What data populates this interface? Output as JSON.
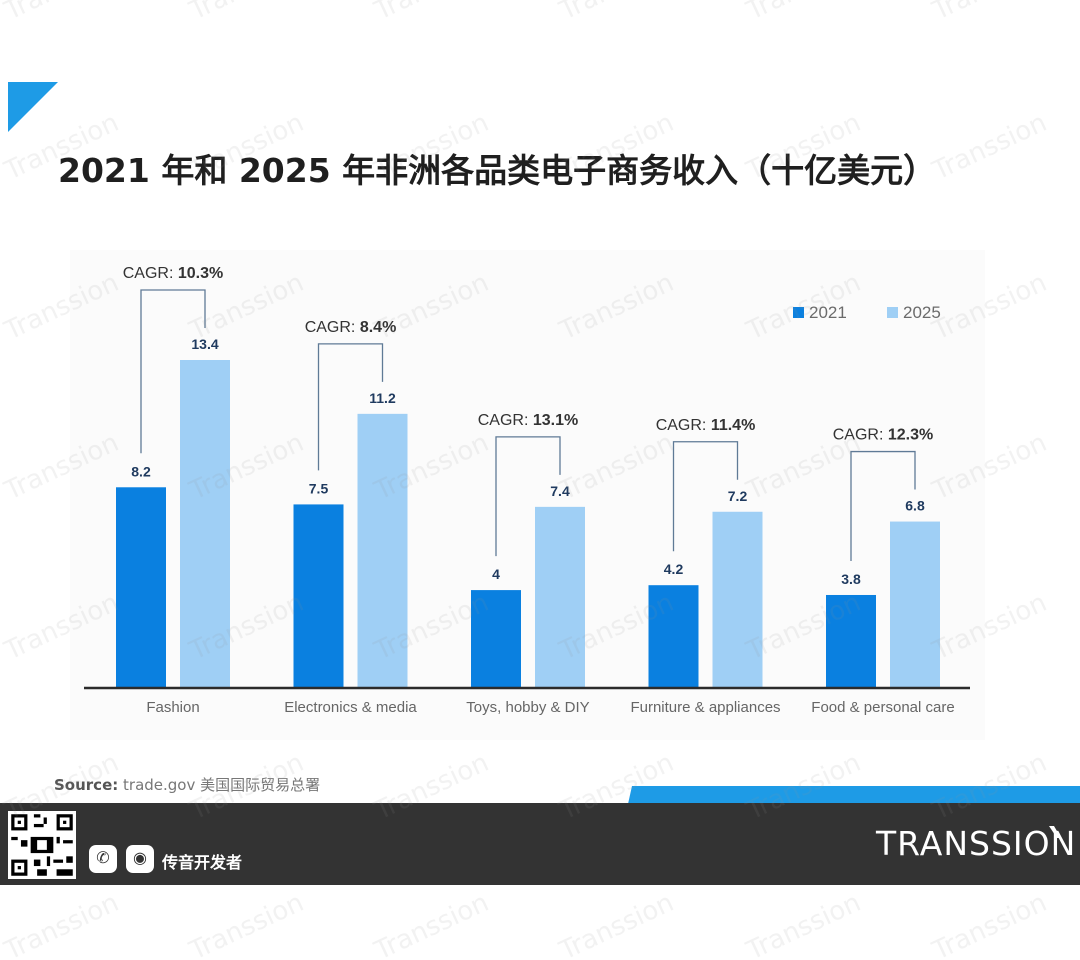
{
  "page": {
    "title": "2021 年和 2025 年非洲各品类电子商务收入（十亿美元）",
    "source_label": "Source:",
    "source_text": " trade.gov 美国国际贸易总署",
    "footer_social_label": "传音开发者",
    "brand": "TRANSSION",
    "watermark": "Transsion"
  },
  "colors": {
    "series_2021": "#0a80e0",
    "series_2025": "#9fcff5",
    "accent": "#1e9be6",
    "footer": "#333333"
  },
  "chart_data": {
    "type": "bar",
    "title": "2021 年和 2025 年非洲各品类电子商务收入（十亿美元）",
    "categories": [
      "Fashion",
      "Electronics & media",
      "Toys, hobby & DIY",
      "Furniture & appliances",
      "Food & personal care"
    ],
    "series": [
      {
        "name": "2021",
        "values": [
          8.2,
          7.5,
          4,
          4.2,
          3.8
        ],
        "labels": [
          "8.2",
          "7.5",
          "4",
          "4.2",
          "3.8"
        ]
      },
      {
        "name": "2025",
        "values": [
          13.4,
          11.2,
          7.4,
          7.2,
          6.8
        ],
        "labels": [
          "13.4",
          "11.2",
          "7.4",
          "7.2",
          "6.8"
        ]
      }
    ],
    "annotations": [
      {
        "prefix": "CAGR: ",
        "value": "10.3%"
      },
      {
        "prefix": "CAGR: ",
        "value": "8.4%"
      },
      {
        "prefix": "CAGR: ",
        "value": "13.1%"
      },
      {
        "prefix": "CAGR: ",
        "value": "11.4%"
      },
      {
        "prefix": "CAGR: ",
        "value": "12.3%"
      }
    ],
    "xlabel": "",
    "ylabel": "",
    "ylim": [
      0,
      13.4
    ],
    "legend": "top-right",
    "grid": false
  }
}
